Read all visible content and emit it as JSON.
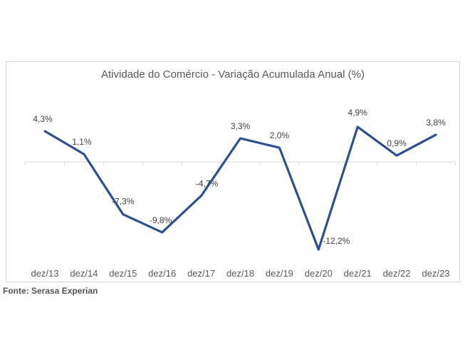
{
  "chart_data": {
    "type": "line",
    "title": "Atividade do Comércio - Variação Acumulada Anual (%)",
    "categories": [
      "dez/13",
      "dez/14",
      "dez/15",
      "dez/16",
      "dez/17",
      "dez/18",
      "dez/19",
      "dez/20",
      "dez/21",
      "dez/22",
      "dez/23"
    ],
    "series": [
      {
        "values": [
          4.3,
          1.1,
          -7.3,
          -9.8,
          -4.7,
          3.3,
          2.0,
          -12.2,
          4.9,
          0.9,
          3.8
        ],
        "labels": [
          "4,3%",
          "1,1%",
          "-7,3%",
          "-9,8%",
          "-4,7%",
          "3,3%",
          "2,0%",
          "-12,2%",
          "4,9%",
          "0,9%",
          "3,8%"
        ],
        "color": "#2f4f8f"
      }
    ],
    "ylim": [
      -12.2,
      4.9
    ],
    "grid": false,
    "legend": "none"
  },
  "source_text": "Fonte: Serasa Experian"
}
